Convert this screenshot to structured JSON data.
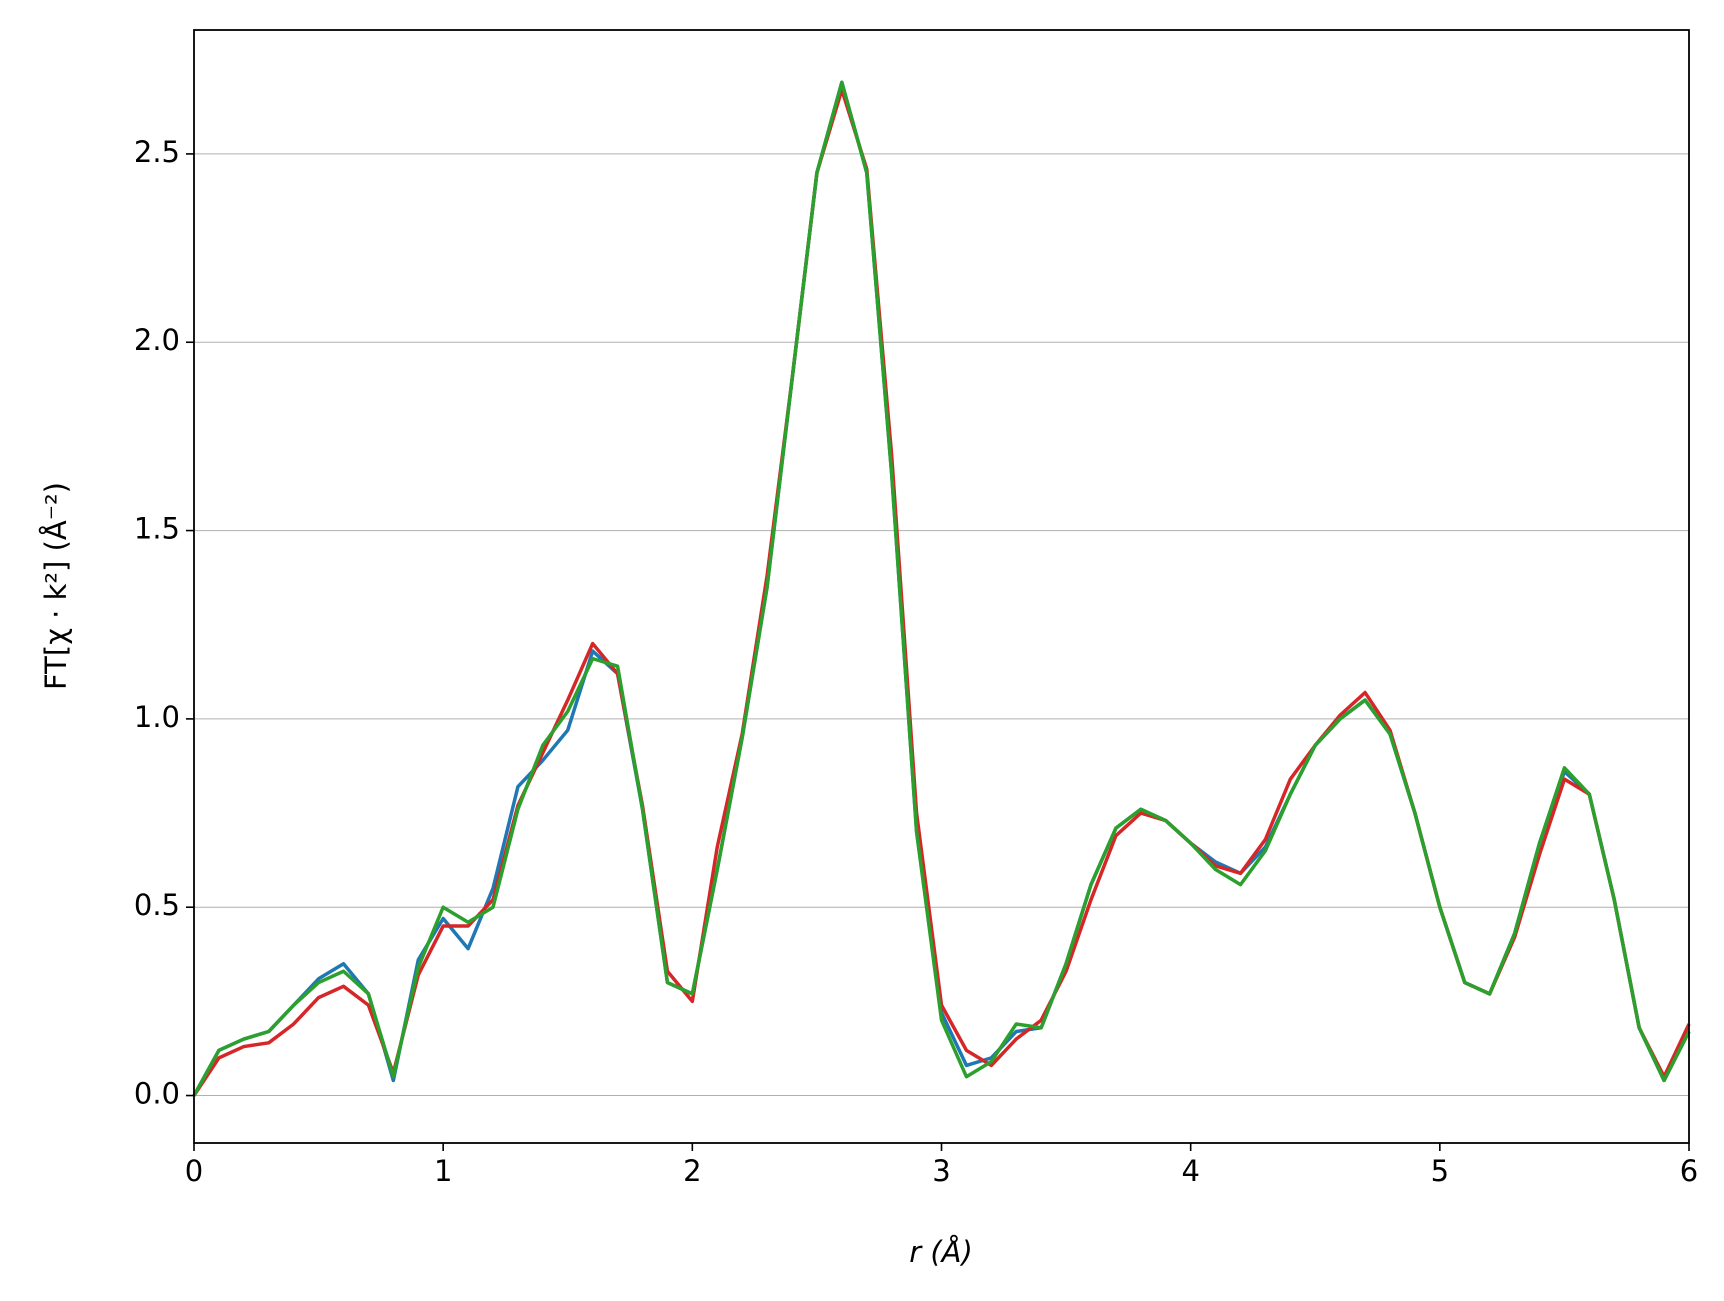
{
  "chart_data": {
    "type": "line",
    "x_label": "r (Å)",
    "y_label": "FT[χ · k²] (Å⁻²)",
    "x": [
      0,
      0.1,
      0.2,
      0.3,
      0.4,
      0.5,
      0.6,
      0.7,
      0.8,
      0.9,
      1.0,
      1.1,
      1.2,
      1.3,
      1.4,
      1.5,
      1.6,
      1.7,
      1.8,
      1.9,
      2.0,
      2.1,
      2.2,
      2.3,
      2.4,
      2.5,
      2.6,
      2.7,
      2.8,
      2.9,
      3.0,
      3.1,
      3.2,
      3.3,
      3.4,
      3.5,
      3.6,
      3.7,
      3.8,
      3.9,
      4.0,
      4.1,
      4.2,
      4.3,
      4.4,
      4.5,
      4.6,
      4.7,
      4.8,
      4.9,
      5.0,
      5.1,
      5.2,
      5.3,
      5.4,
      5.5,
      5.6,
      5.7,
      5.8,
      5.9,
      6.0
    ],
    "series": [
      {
        "color": "#1f77b4",
        "values": [
          0,
          0.12,
          0.15,
          0.17,
          0.24,
          0.31,
          0.35,
          0.27,
          0.04,
          0.36,
          0.47,
          0.39,
          0.55,
          0.82,
          0.89,
          0.97,
          1.18,
          1.12,
          0.76,
          0.3,
          0.27,
          0.6,
          0.95,
          1.35,
          1.9,
          2.45,
          2.69,
          2.45,
          1.65,
          0.7,
          0.22,
          0.08,
          0.1,
          0.17,
          0.18,
          0.35,
          0.56,
          0.71,
          0.76,
          0.73,
          0.67,
          0.62,
          0.59,
          0.66,
          0.8,
          0.93,
          1.0,
          1.05,
          0.96,
          0.75,
          0.5,
          0.3,
          0.27,
          0.43,
          0.67,
          0.86,
          0.8,
          0.52,
          0.18,
          0.04,
          0.17
        ]
      },
      {
        "color": "#d62728",
        "values": [
          0,
          0.1,
          0.13,
          0.14,
          0.19,
          0.26,
          0.29,
          0.24,
          0.06,
          0.32,
          0.45,
          0.45,
          0.52,
          0.77,
          0.91,
          1.05,
          1.2,
          1.12,
          0.77,
          0.33,
          0.25,
          0.66,
          0.96,
          1.38,
          1.9,
          2.45,
          2.67,
          2.46,
          1.7,
          0.75,
          0.24,
          0.12,
          0.08,
          0.15,
          0.2,
          0.33,
          0.52,
          0.69,
          0.75,
          0.73,
          0.67,
          0.61,
          0.59,
          0.68,
          0.84,
          0.93,
          1.01,
          1.07,
          0.97,
          0.75,
          0.5,
          0.3,
          0.27,
          0.42,
          0.64,
          0.84,
          0.8,
          0.52,
          0.18,
          0.05,
          0.19
        ]
      },
      {
        "color": "#2ca02c",
        "values": [
          0,
          0.12,
          0.15,
          0.17,
          0.24,
          0.3,
          0.33,
          0.27,
          0.05,
          0.34,
          0.5,
          0.46,
          0.5,
          0.76,
          0.93,
          1.02,
          1.16,
          1.14,
          0.76,
          0.3,
          0.27,
          0.6,
          0.95,
          1.35,
          1.9,
          2.45,
          2.69,
          2.45,
          1.65,
          0.7,
          0.2,
          0.05,
          0.09,
          0.19,
          0.18,
          0.35,
          0.56,
          0.71,
          0.76,
          0.73,
          0.67,
          0.6,
          0.56,
          0.65,
          0.8,
          0.93,
          1.0,
          1.05,
          0.96,
          0.75,
          0.5,
          0.3,
          0.27,
          0.43,
          0.67,
          0.87,
          0.8,
          0.52,
          0.18,
          0.04,
          0.17
        ]
      }
    ],
    "xlim": [
      0,
      6
    ],
    "xticks": [
      0,
      1,
      2,
      3,
      4,
      5,
      6
    ],
    "ylim": [
      -0.126,
      2.829
    ],
    "yticks": [
      {
        "value": 0,
        "label": "0.0"
      },
      0.5,
      {
        "value": 1,
        "label": "1.0"
      },
      1.5,
      {
        "value": 2,
        "label": "2.0"
      },
      2.5
    ],
    "grid": true
  }
}
